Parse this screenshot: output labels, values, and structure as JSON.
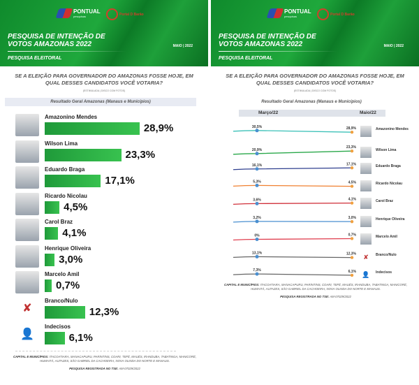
{
  "header": {
    "brand1": "PONTUAL",
    "brand1_sub": "pesquisas",
    "brand2": "Portal D Barão",
    "title": "PESQUISA DE INTENÇÃO DE VOTOS AMAZONAS 2022",
    "subtitle": "PESQUISA ELEITORAL",
    "date": "MAIO | 2022"
  },
  "question": "SE A ELEIÇÃO PARA GOVERNADOR DO AMAZONAS FOSSE HOJE, EM QUAL DESSES CANDIDATOS VOCÊ VOTARIA?",
  "question_note": "(ESTIMULADA | DISCO COM FOTOS)",
  "left": {
    "section_title": "Resultado Geral Amazonas (Manaus e Municípios)",
    "rows": [
      {
        "name": "Amazonino Mendes",
        "value": 28.9,
        "label": "28,9%"
      },
      {
        "name": "Wilson Lima",
        "value": 23.3,
        "label": "23,3%"
      },
      {
        "name": "Eduardo Braga",
        "value": 17.1,
        "label": "17,1%"
      },
      {
        "name": "Ricardo Nicolau",
        "value": 4.5,
        "label": "4,5%"
      },
      {
        "name": "Carol Braz",
        "value": 4.1,
        "label": "4,1%"
      },
      {
        "name": "Henrique Oliveira",
        "value": 3.0,
        "label": "3,0%"
      },
      {
        "name": "Marcelo Amil",
        "value": 0.7,
        "label": "0,7%"
      },
      {
        "name": "Branco/Nulo",
        "value": 12.3,
        "label": "12,3%",
        "icon": "x-ballot-icon"
      },
      {
        "name": "Indecisos",
        "value": 6.1,
        "label": "6,1%",
        "icon": "person-icon"
      }
    ]
  },
  "right": {
    "section_title": "Resultado Geral Amazonas (Manaus e Municípios)",
    "col_from": "Março/22",
    "col_to": "Maio/22",
    "chart_data": {
      "type": "line",
      "categories": [
        "Março/22",
        "Maio/22"
      ],
      "series": [
        {
          "name": "Amazonino Mendes",
          "values": [
            30.5,
            28.9
          ],
          "labels": [
            "30,5%",
            "28,9%"
          ],
          "color": "#3cc1b8"
        },
        {
          "name": "Wilson Lima",
          "values": [
            20.9,
            23.3
          ],
          "labels": [
            "20,9%",
            "23,3%"
          ],
          "color": "#2aa84a"
        },
        {
          "name": "Eduardo Braga",
          "values": [
            16.1,
            17.1
          ],
          "labels": [
            "16,1%",
            "17,1%"
          ],
          "color": "#2f3f8f"
        },
        {
          "name": "Ricardo Nicolau",
          "values": [
            5.3,
            4.5
          ],
          "labels": [
            "5,3%",
            "4,5%"
          ],
          "color": "#f08030"
        },
        {
          "name": "Carol Braz",
          "values": [
            3.6,
            4.1
          ],
          "labels": [
            "3,6%",
            "4,1%"
          ],
          "color": "#d0303a"
        },
        {
          "name": "Henrique Oliveira",
          "values": [
            3.2,
            3.0
          ],
          "labels": [
            "3,2%",
            "3,0%"
          ],
          "color": "#4a8fd0"
        },
        {
          "name": "Marcelo Amil",
          "values": [
            0,
            0.7
          ],
          "labels": [
            "0%",
            "0,7%"
          ],
          "color": "#e04050"
        },
        {
          "name": "Branco/Nulo",
          "values": [
            13.1,
            12.3
          ],
          "labels": [
            "13,1%",
            "12,3%"
          ],
          "color": "#666666"
        },
        {
          "name": "Indecisos",
          "values": [
            7.3,
            6.1
          ],
          "labels": [
            "7,3%",
            "6,1%"
          ],
          "color": "#666666"
        }
      ],
      "marker_colors": {
        "from": "#4a8fd0",
        "to": "#f0a040"
      }
    }
  },
  "footer": {
    "cities_label": "CAPITAL E MUNICÍPIOS:",
    "cities": "ITACOATIARA, MANACAPURU, PARINTINS, COARI, TEFÉ, MAUÉS, IRANDUBA, TABATINGA, MANICORÉ, HUMAITÁ, AUTAZES, SÃO GABRIEL DA CACHOEIRA, NOVA OLINDA DO NORTE E MANAUS.",
    "reg_label": "PESQUISA REGISTRADA NO TSE:",
    "reg": "AM-07029/2022"
  },
  "colors": {
    "green": "#1fa83c",
    "bar": "#2db446"
  }
}
